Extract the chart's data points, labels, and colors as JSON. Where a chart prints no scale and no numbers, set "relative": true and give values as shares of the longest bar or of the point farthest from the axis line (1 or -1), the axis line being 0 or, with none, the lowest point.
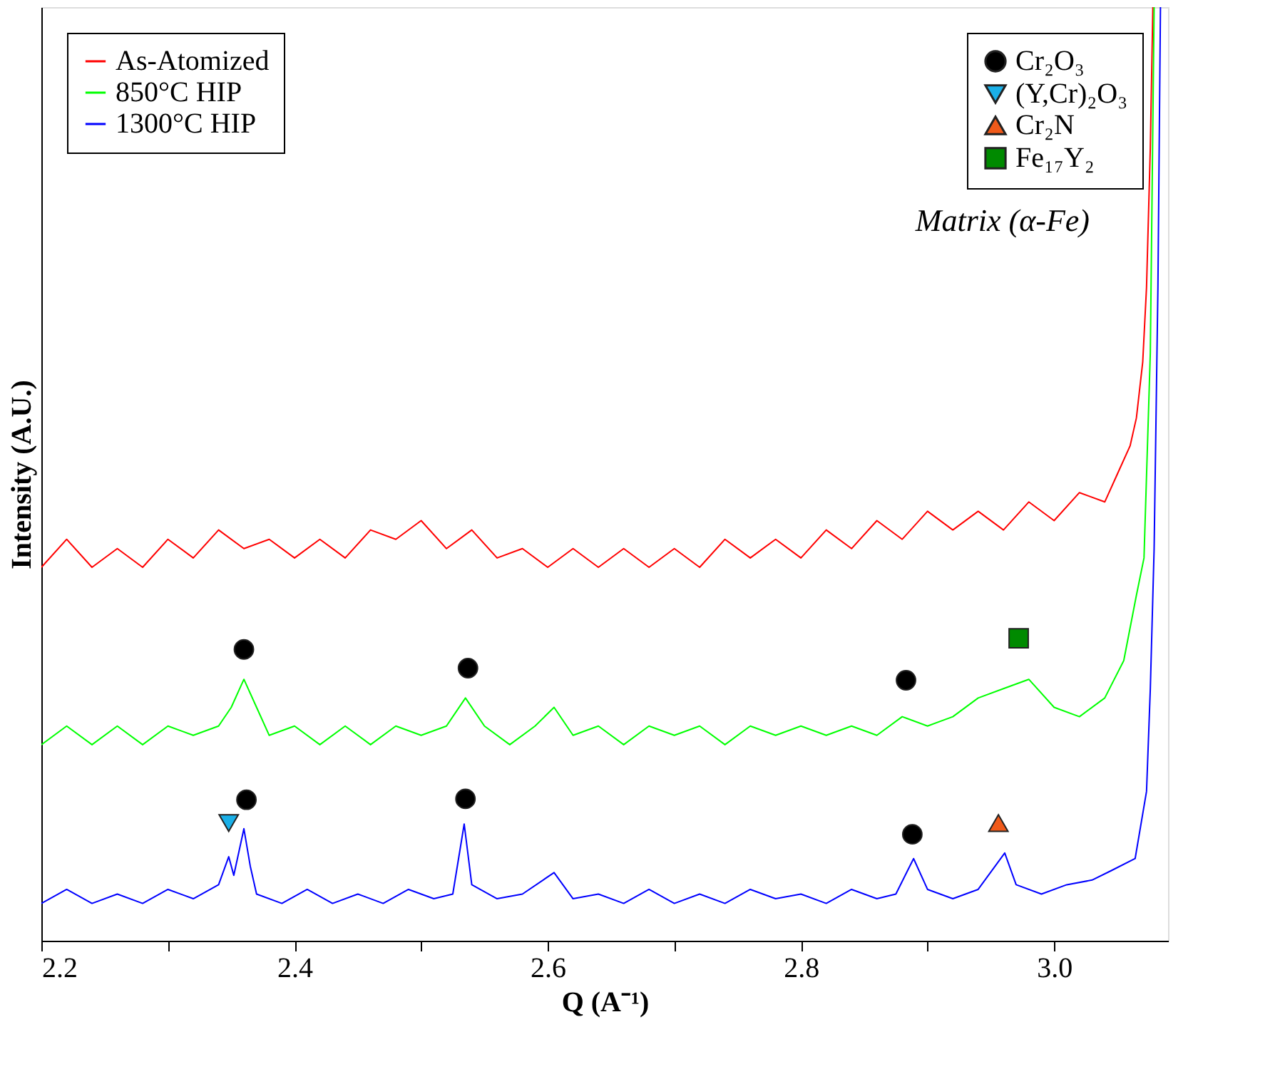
{
  "chart_data": {
    "type": "line",
    "xlabel": "Q (A⁻¹)",
    "ylabel": "Intensity (A.U.)",
    "relative": true,
    "xlim": [
      2.2,
      3.09
    ],
    "xticks": [
      2.2,
      {
        "value": 2.3,
        "label": null
      },
      2.4,
      {
        "value": 2.5,
        "label": null
      },
      2.6,
      {
        "value": 2.7,
        "label": null
      },
      2.8,
      {
        "value": 2.9,
        "label": null
      },
      {
        "value": 3.0,
        "label": "3.0"
      }
    ],
    "legend": "top left",
    "grid": false,
    "annotations": [
      "Matrix (α-Fe)"
    ],
    "series": [
      {
        "name": "As-Atomized",
        "color": "#ff0000",
        "x": [
          2.2,
          2.22,
          2.24,
          2.26,
          2.28,
          2.3,
          2.32,
          2.34,
          2.36,
          2.38,
          2.4,
          2.42,
          2.44,
          2.46,
          2.48,
          2.5,
          2.52,
          2.54,
          2.56,
          2.58,
          2.6,
          2.62,
          2.64,
          2.66,
          2.68,
          2.7,
          2.72,
          2.74,
          2.76,
          2.78,
          2.8,
          2.82,
          2.84,
          2.86,
          2.88,
          2.9,
          2.92,
          2.94,
          2.96,
          2.98,
          3.0,
          3.02,
          3.04,
          3.05,
          3.06,
          3.065,
          3.07,
          3.073,
          3.076,
          3.078
        ],
        "values": [
          0.4,
          0.43,
          0.4,
          0.42,
          0.4,
          0.43,
          0.41,
          0.44,
          0.42,
          0.43,
          0.41,
          0.43,
          0.41,
          0.44,
          0.43,
          0.45,
          0.42,
          0.44,
          0.41,
          0.42,
          0.4,
          0.42,
          0.4,
          0.42,
          0.4,
          0.42,
          0.4,
          0.43,
          0.41,
          0.43,
          0.41,
          0.44,
          0.42,
          0.45,
          0.43,
          0.46,
          0.44,
          0.46,
          0.44,
          0.47,
          0.45,
          0.48,
          0.47,
          0.5,
          0.53,
          0.56,
          0.62,
          0.7,
          0.85,
          1.0
        ]
      },
      {
        "name": "850°C HIP",
        "color": "#00ff00",
        "x": [
          2.2,
          2.22,
          2.24,
          2.26,
          2.28,
          2.3,
          2.32,
          2.34,
          2.35,
          2.36,
          2.37,
          2.38,
          2.4,
          2.42,
          2.44,
          2.46,
          2.48,
          2.5,
          2.52,
          2.535,
          2.55,
          2.57,
          2.59,
          2.605,
          2.62,
          2.64,
          2.66,
          2.68,
          2.7,
          2.72,
          2.74,
          2.76,
          2.78,
          2.8,
          2.82,
          2.84,
          2.86,
          2.88,
          2.9,
          2.92,
          2.94,
          2.96,
          2.98,
          3.0,
          3.02,
          3.04,
          3.055,
          3.065,
          3.071,
          3.076,
          3.079
        ],
        "values": [
          0.21,
          0.23,
          0.21,
          0.23,
          0.21,
          0.23,
          0.22,
          0.23,
          0.25,
          0.28,
          0.25,
          0.22,
          0.23,
          0.21,
          0.23,
          0.21,
          0.23,
          0.22,
          0.23,
          0.26,
          0.23,
          0.21,
          0.23,
          0.25,
          0.22,
          0.23,
          0.21,
          0.23,
          0.22,
          0.23,
          0.21,
          0.23,
          0.22,
          0.23,
          0.22,
          0.23,
          0.22,
          0.24,
          0.23,
          0.24,
          0.26,
          0.27,
          0.28,
          0.25,
          0.24,
          0.26,
          0.3,
          0.37,
          0.41,
          0.63,
          1.0
        ]
      },
      {
        "name": "1300°C HIP",
        "color": "#0000ff",
        "x": [
          2.2,
          2.22,
          2.24,
          2.26,
          2.28,
          2.3,
          2.32,
          2.34,
          2.348,
          2.352,
          2.36,
          2.365,
          2.37,
          2.39,
          2.41,
          2.43,
          2.45,
          2.47,
          2.49,
          2.51,
          2.525,
          2.534,
          2.54,
          2.56,
          2.58,
          2.605,
          2.62,
          2.64,
          2.66,
          2.68,
          2.7,
          2.72,
          2.74,
          2.76,
          2.78,
          2.8,
          2.82,
          2.84,
          2.86,
          2.875,
          2.889,
          2.9,
          2.92,
          2.94,
          2.961,
          2.97,
          2.99,
          3.01,
          3.03,
          3.045,
          3.064,
          3.073,
          3.076,
          3.079,
          3.082,
          3.084
        ],
        "values": [
          0.04,
          0.055,
          0.04,
          0.05,
          0.04,
          0.055,
          0.045,
          0.06,
          0.09,
          0.07,
          0.12,
          0.08,
          0.05,
          0.04,
          0.055,
          0.04,
          0.05,
          0.04,
          0.055,
          0.045,
          0.05,
          0.125,
          0.06,
          0.045,
          0.05,
          0.073,
          0.045,
          0.05,
          0.04,
          0.055,
          0.04,
          0.05,
          0.04,
          0.055,
          0.045,
          0.05,
          0.04,
          0.055,
          0.045,
          0.05,
          0.088,
          0.055,
          0.045,
          0.055,
          0.094,
          0.06,
          0.05,
          0.06,
          0.065,
          0.075,
          0.088,
          0.16,
          0.27,
          0.42,
          0.7,
          1.0
        ]
      },
      {
        "name": "Cr₂O₃",
        "type": "scatter",
        "marker": "circle",
        "color": "#000000",
        "x": [
          2.36,
          2.537,
          2.883,
          2.362,
          2.535,
          2.888
        ],
        "values": [
          0.312,
          0.292,
          0.279,
          0.151,
          0.152,
          0.114
        ]
      },
      {
        "name": "(Y,Cr)₂O₃",
        "type": "scatter",
        "marker": "triangle-down",
        "color": "#1ab0e8",
        "x": [
          2.348
        ],
        "values": [
          0.126
        ]
      },
      {
        "name": "Cr₂N",
        "type": "scatter",
        "marker": "triangle",
        "color": "#f05a1a",
        "x": [
          2.956
        ],
        "values": [
          0.126
        ]
      },
      {
        "name": "Fe₁₇Y₂",
        "type": "scatter",
        "marker": "square",
        "color": "#008a00",
        "x": [
          2.972
        ],
        "values": [
          0.324
        ]
      }
    ]
  }
}
